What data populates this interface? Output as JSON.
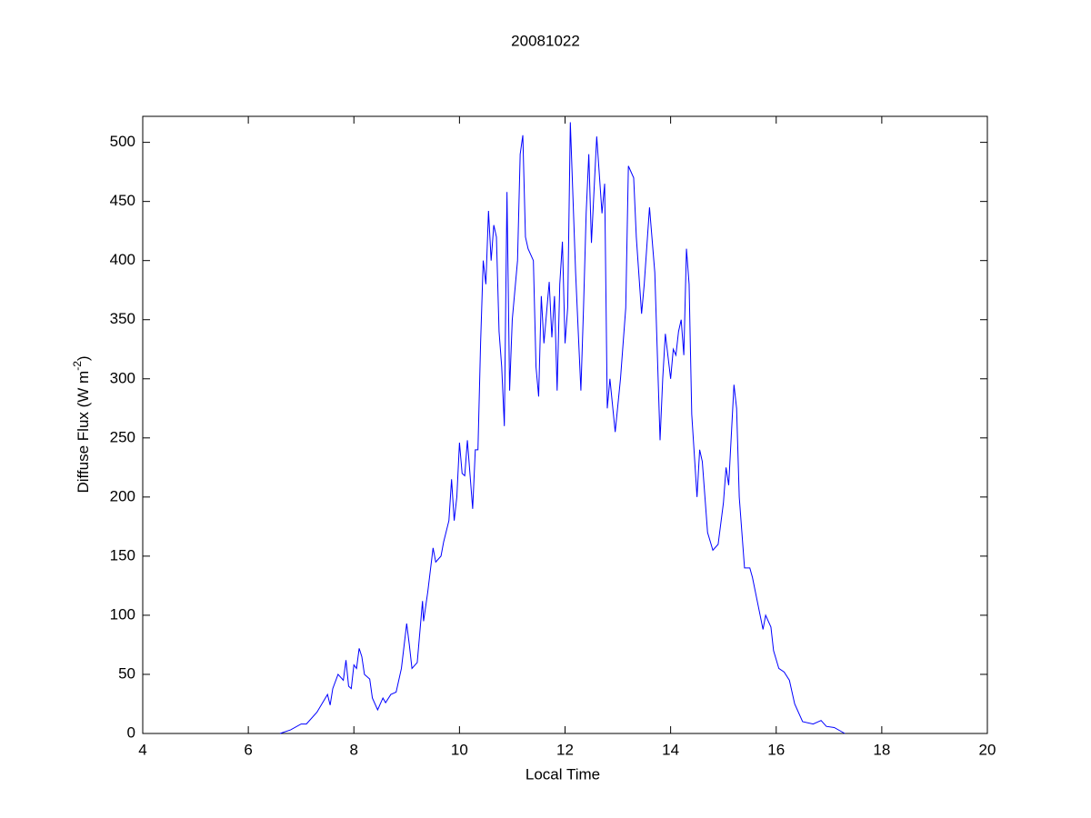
{
  "chart_data": {
    "type": "line",
    "title": "20081022",
    "xlabel": "Local Time",
    "ylabel": {
      "text": "Diffuse Flux (W m",
      "superscript": "-2",
      "suffix": ")"
    },
    "xlim": [
      4,
      20
    ],
    "xticks": [
      4,
      6,
      8,
      10,
      12,
      14,
      16,
      18,
      20
    ],
    "ylim": [
      0,
      522
    ],
    "yticks": [
      0,
      50,
      100,
      150,
      200,
      250,
      300,
      350,
      400,
      450,
      500
    ],
    "grid": false,
    "series": [
      {
        "color": "#0000ff",
        "x": [
          6.6,
          6.8,
          7.0,
          7.1,
          7.3,
          7.5,
          7.55,
          7.6,
          7.7,
          7.8,
          7.85,
          7.9,
          7.95,
          8.0,
          8.05,
          8.1,
          8.15,
          8.2,
          8.3,
          8.35,
          8.45,
          8.55,
          8.6,
          8.7,
          8.8,
          8.9,
          9.0,
          9.05,
          9.1,
          9.2,
          9.3,
          9.32,
          9.4,
          9.5,
          9.55,
          9.65,
          9.7,
          9.8,
          9.85,
          9.9,
          9.95,
          10.0,
          10.05,
          10.1,
          10.15,
          10.25,
          10.3,
          10.35,
          10.4,
          10.45,
          10.5,
          10.55,
          10.6,
          10.65,
          10.7,
          10.75,
          10.8,
          10.85,
          10.9,
          10.95,
          11.0,
          11.1,
          11.15,
          11.2,
          11.25,
          11.3,
          11.35,
          11.4,
          11.45,
          11.5,
          11.55,
          11.6,
          11.7,
          11.75,
          11.8,
          11.85,
          11.9,
          11.95,
          12.0,
          12.05,
          12.1,
          12.2,
          12.3,
          12.35,
          12.4,
          12.45,
          12.5,
          12.55,
          12.6,
          12.7,
          12.75,
          12.8,
          12.85,
          12.95,
          13.05,
          13.15,
          13.2,
          13.3,
          13.35,
          13.45,
          13.5,
          13.6,
          13.7,
          13.8,
          13.85,
          13.9,
          14.0,
          14.05,
          14.1,
          14.15,
          14.2,
          14.25,
          14.3,
          14.35,
          14.4,
          14.5,
          14.55,
          14.6,
          14.7,
          14.8,
          14.9,
          15.0,
          15.05,
          15.1,
          15.2,
          15.25,
          15.3,
          15.4,
          15.5,
          15.55,
          15.65,
          15.75,
          15.8,
          15.9,
          15.95,
          16.05,
          16.15,
          16.25,
          16.35,
          16.5,
          16.7,
          16.85,
          16.95,
          17.1,
          17.3
        ],
        "values": [
          0,
          3,
          8,
          8,
          18,
          33,
          24,
          38,
          50,
          45,
          62,
          40,
          38,
          58,
          55,
          72,
          65,
          50,
          46,
          30,
          20,
          30,
          26,
          33,
          35,
          55,
          93,
          75,
          55,
          60,
          112,
          95,
          120,
          157,
          145,
          150,
          162,
          180,
          215,
          180,
          200,
          246,
          220,
          218,
          248,
          190,
          240,
          240,
          330,
          400,
          380,
          442,
          400,
          430,
          420,
          340,
          310,
          260,
          458,
          290,
          350,
          400,
          490,
          506,
          420,
          410,
          405,
          400,
          310,
          285,
          370,
          330,
          382,
          335,
          370,
          290,
          380,
          416,
          330,
          360,
          517,
          390,
          290,
          360,
          440,
          490,
          415,
          460,
          505,
          440,
          465,
          275,
          300,
          255,
          300,
          360,
          480,
          470,
          420,
          355,
          380,
          445,
          390,
          248,
          300,
          338,
          300,
          325,
          320,
          340,
          350,
          320,
          410,
          380,
          270,
          200,
          240,
          230,
          170,
          155,
          160,
          195,
          225,
          210,
          295,
          275,
          200,
          140,
          140,
          132,
          110,
          88,
          100,
          90,
          70,
          55,
          52,
          45,
          25,
          10,
          8,
          11,
          6,
          5,
          0
        ]
      }
    ]
  }
}
